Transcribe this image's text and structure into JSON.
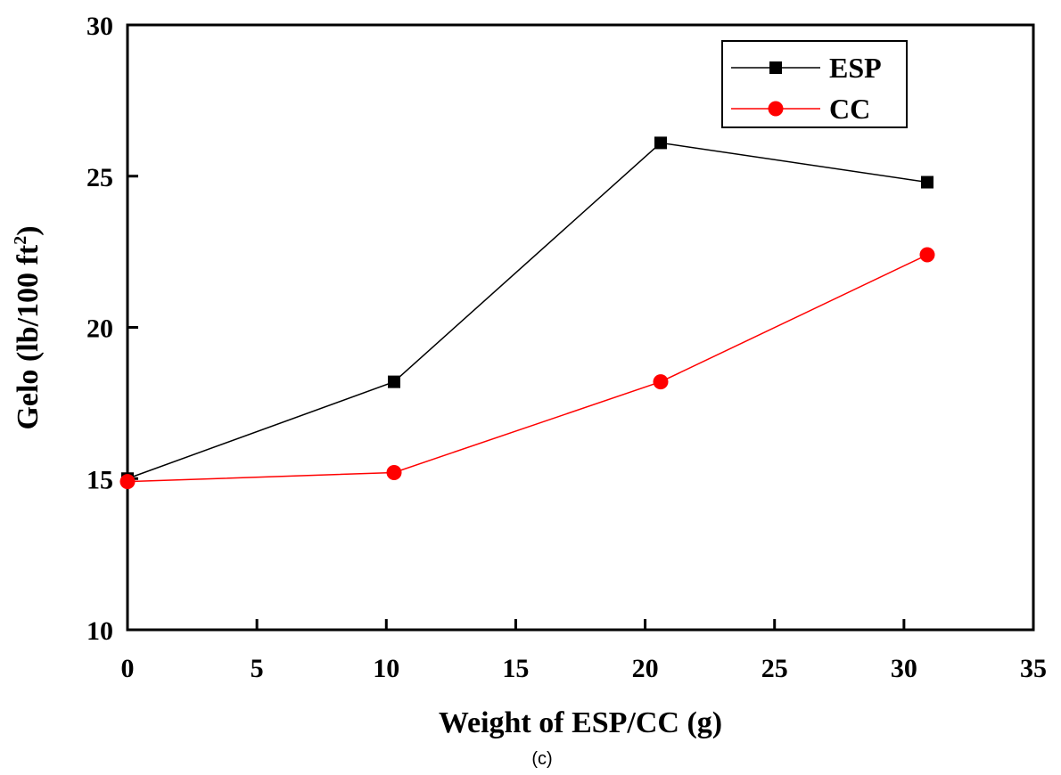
{
  "chart_data": {
    "type": "line",
    "xlabel": "Weight of ESP/CC (g)",
    "ylabel_main": "Gelo (lb/100 ft",
    "ylabel_sup": "2",
    "ylabel_tail": ")",
    "xlim": [
      0,
      35
    ],
    "ylim": [
      10,
      30
    ],
    "xticks": [
      "0",
      "5",
      "10",
      "15",
      "20",
      "25",
      "30",
      "35"
    ],
    "yticks": [
      "10",
      "15",
      "20",
      "25",
      "30"
    ],
    "grid": false,
    "legend_position": "top-right",
    "series": [
      {
        "name": "ESP",
        "marker": "square",
        "color": "#000000",
        "x": [
          0,
          10.3,
          20.6,
          30.9
        ],
        "y": [
          15.0,
          18.2,
          26.1,
          24.8
        ]
      },
      {
        "name": "CC",
        "marker": "circle",
        "color": "#ff0000",
        "x": [
          0,
          10.3,
          20.6,
          30.9
        ],
        "y": [
          14.9,
          15.2,
          18.2,
          22.4
        ]
      }
    ]
  },
  "caption": "(c)"
}
